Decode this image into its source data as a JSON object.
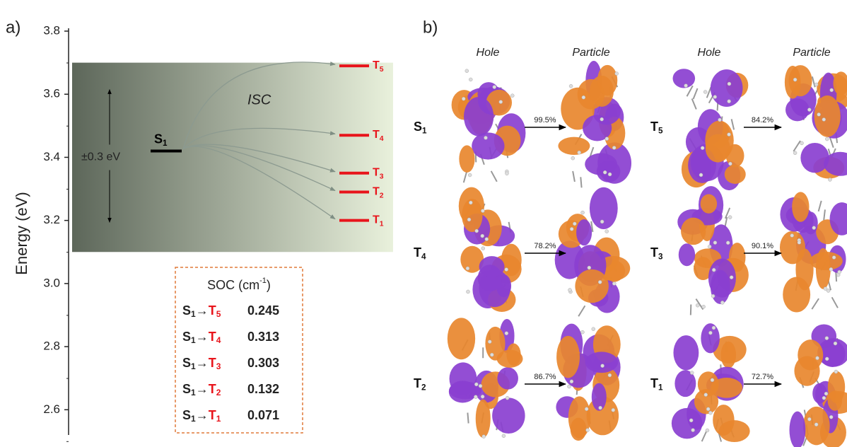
{
  "chart_data": {
    "type": "energy-levels",
    "panel_label": "a)",
    "ylabel": "Energy (eV)",
    "ylim": [
      2.52,
      3.8
    ],
    "yticks": [
      2.6,
      2.8,
      {
        "value": 3,
        "label": "3.0"
      },
      3.2,
      3.4,
      3.6,
      3.8
    ],
    "window": {
      "range": [
        3.1,
        3.7
      ],
      "label": "±0.3 eV"
    },
    "transfer_label": "ISC",
    "singlet": {
      "symbol": "S",
      "subscript": "1",
      "energy": 3.42,
      "color": "#000000"
    },
    "triplet_color": "#e8141b",
    "triplets": [
      {
        "symbol": "T",
        "subscript": "5",
        "energy": 3.69
      },
      {
        "symbol": "T",
        "subscript": "4",
        "energy": 3.47
      },
      {
        "symbol": "T",
        "subscript": "3",
        "energy": 3.35
      },
      {
        "symbol": "T",
        "subscript": "2",
        "energy": 3.29
      },
      {
        "symbol": "T",
        "subscript": "1",
        "energy": 3.2
      }
    ],
    "soc": {
      "title": "SOC (cm",
      "title_superscript": "-1",
      "title_end": ")",
      "arrow": "→",
      "rows": [
        {
          "from": "S",
          "from_subscript": "1",
          "to": "T",
          "to_subscript": "5",
          "value": 0.245
        },
        {
          "from": "S",
          "from_subscript": "1",
          "to": "T",
          "to_subscript": "4",
          "value": 0.313
        },
        {
          "from": "S",
          "from_subscript": "1",
          "to": "T",
          "to_subscript": "3",
          "value": 0.303
        },
        {
          "from": "S",
          "from_subscript": "1",
          "to": "T",
          "to_subscript": "2",
          "value": 0.132
        },
        {
          "from": "S",
          "from_subscript": "1",
          "to": "T",
          "to_subscript": "1",
          "value": 0.071
        }
      ]
    }
  },
  "panel_b": {
    "label": "b)",
    "headers": [
      "Hole",
      "Particle",
      "Hole",
      "Particle"
    ],
    "transitions": [
      {
        "symbol": "S",
        "subscript": "1",
        "percent": "99.5%"
      },
      {
        "symbol": "T",
        "subscript": "5",
        "percent": "84.2%"
      },
      {
        "symbol": "T",
        "subscript": "4",
        "percent": "78.2%"
      },
      {
        "symbol": "T",
        "subscript": "3",
        "percent": "90.1%"
      },
      {
        "symbol": "T",
        "subscript": "2",
        "percent": "86.7%"
      },
      {
        "symbol": "T",
        "subscript": "1",
        "percent": "72.7%"
      }
    ]
  }
}
